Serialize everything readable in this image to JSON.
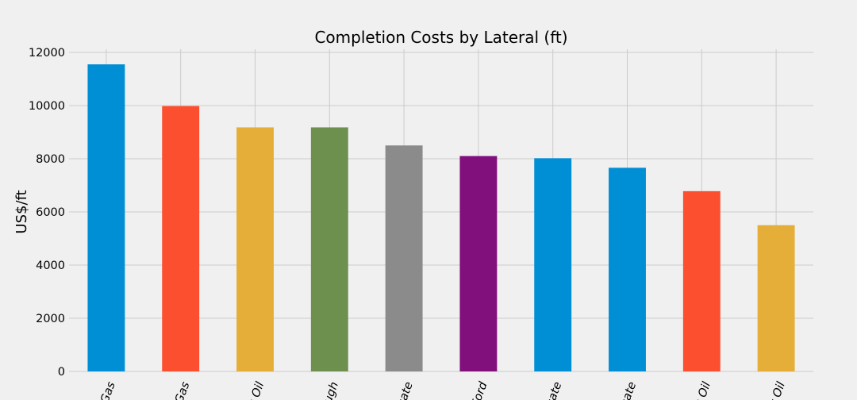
{
  "chart_data": {
    "type": "bar",
    "title": "Completion Costs by Lateral (ft)",
    "xlabel": "",
    "ylabel": "US$/ft",
    "ylim": [
      0,
      12000
    ],
    "yticks": [
      0,
      2000,
      4000,
      6000,
      8000,
      10000,
      12000
    ],
    "grid": true,
    "categories": [
      "Gas",
      "Gas",
      "k Oil",
      "ough",
      "sate",
      "Ford",
      "sate",
      "sate",
      "k Oil",
      "t Oil"
    ],
    "values": [
      11550,
      9980,
      9180,
      9180,
      8500,
      8100,
      8020,
      7660,
      6780,
      5500
    ],
    "colors": [
      "#008fd5",
      "#fc4f30",
      "#e5ae38",
      "#6d904f",
      "#8b8b8b",
      "#810f7c",
      "#008fd5",
      "#008fd5",
      "#fc4f30",
      "#e5ae38"
    ]
  }
}
